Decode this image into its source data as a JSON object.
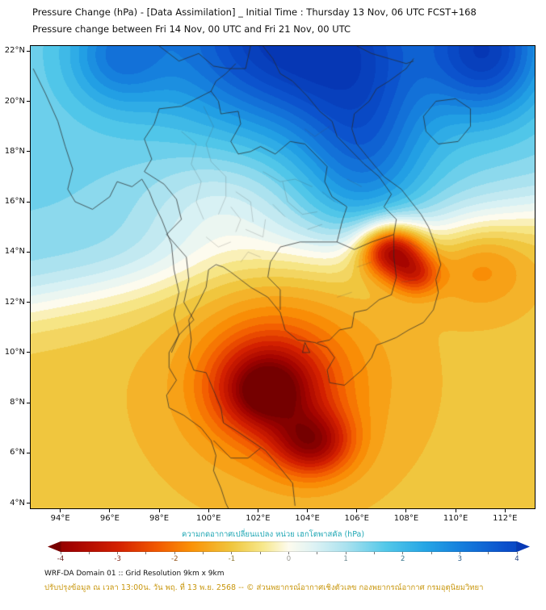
{
  "header": {
    "title_line1": "Pressure Change (hPa) - [Data Assimilation] _ Initial Time : Thursday 13 Nov, 06 UTC FCST+168",
    "title_line2": "Pressure change between Fri 14 Nov, 00 UTC and Fri 21 Nov, 00 UTC"
  },
  "map": {
    "lon_min": 92.8,
    "lon_max": 113.2,
    "lat_min": 3.8,
    "lat_max": 22.2,
    "x_ticks": [
      {
        "value": 94,
        "label": "94°E"
      },
      {
        "value": 96,
        "label": "96°E"
      },
      {
        "value": 98,
        "label": "98°E"
      },
      {
        "value": 100,
        "label": "100°E"
      },
      {
        "value": 102,
        "label": "102°E"
      },
      {
        "value": 104,
        "label": "104°E"
      },
      {
        "value": 106,
        "label": "106°E"
      },
      {
        "value": 108,
        "label": "108°E"
      },
      {
        "value": 110,
        "label": "110°E"
      },
      {
        "value": 112,
        "label": "112°E"
      }
    ],
    "y_ticks": [
      {
        "value": 22,
        "label": "22°N"
      },
      {
        "value": 20,
        "label": "20°N"
      },
      {
        "value": 18,
        "label": "18°N"
      },
      {
        "value": 16,
        "label": "16°N"
      },
      {
        "value": 14,
        "label": "14°N"
      },
      {
        "value": 12,
        "label": "12°N"
      },
      {
        "value": 10,
        "label": "10°N"
      },
      {
        "value": 8,
        "label": "8°N"
      },
      {
        "value": 6,
        "label": "6°N"
      },
      {
        "value": 4,
        "label": "4°N"
      }
    ]
  },
  "field": {
    "units": "hPa",
    "description": "Pressure rise (blue, up to about +4 hPa) across the north (20-22N, 99-112E); pressure fall (yellow/orange/red, down to about -4 hPa) over the south, strongest over the Gulf of Thailand near 102.5E 8.5N and 104E 6.5N, and over southern Vietnam highlands near 107.4E 14N",
    "base": {
      "north": 1.4,
      "south": -1.05,
      "lat0_at_lon94": 12.2,
      "lat0_slope": 0.18,
      "transition_width": 1.6
    },
    "blobs": [
      {
        "name": "north-high-core",
        "lon": 103.5,
        "lat": 22.5,
        "sx": 3.8,
        "sy": 2.6,
        "amp": 3.2
      },
      {
        "name": "northeast-high",
        "lon": 111.3,
        "lat": 22.0,
        "sx": 1.6,
        "sy": 1.8,
        "amp": 2.6
      },
      {
        "name": "vietnam-coast-ridge",
        "lon": 106.3,
        "lat": 18.0,
        "sx": 1.8,
        "sy": 2.6,
        "amp": 1.6
      },
      {
        "name": "northwest-high",
        "lon": 96.3,
        "lat": 21.8,
        "sx": 1.4,
        "sy": 1.4,
        "amp": 1.4
      },
      {
        "name": "central-thailand-dip",
        "lon": 100.5,
        "lat": 15.5,
        "sx": 2.2,
        "sy": 1.8,
        "amp": -0.9
      },
      {
        "name": "gulf-low-main",
        "lon": 102.4,
        "lat": 8.6,
        "sx": 1.5,
        "sy": 1.3,
        "amp": -2.6
      },
      {
        "name": "gulf-low-inner-core",
        "lon": 102.3,
        "lat": 8.4,
        "sx": 0.7,
        "sy": 0.6,
        "amp": -0.9
      },
      {
        "name": "gulf-low-south",
        "lon": 104.2,
        "lat": 6.4,
        "sx": 1.1,
        "sy": 0.9,
        "amp": -2.4
      },
      {
        "name": "gulf-orange-halo",
        "lon": 103.0,
        "lat": 9.0,
        "sx": 2.8,
        "sy": 2.6,
        "amp": -1.1
      },
      {
        "name": "vietnam-highland-low",
        "lon": 107.4,
        "lat": 14.1,
        "sx": 0.9,
        "sy": 0.75,
        "amp": -3.6
      },
      {
        "name": "vietnam-coast-low",
        "lon": 108.4,
        "lat": 13.1,
        "sx": 0.7,
        "sy": 0.6,
        "amp": -1.6
      },
      {
        "name": "east-sea-orange",
        "lon": 111.0,
        "lat": 13.5,
        "sx": 1.4,
        "sy": 1.2,
        "amp": -0.8
      }
    ]
  },
  "colormap": {
    "stops": [
      [
        -4.6,
        "#6e0000"
      ],
      [
        -3.8,
        "#a30300"
      ],
      [
        -3.0,
        "#d32000"
      ],
      [
        -2.3,
        "#f25a00"
      ],
      [
        -1.7,
        "#fa9207"
      ],
      [
        -1.0,
        "#f0c63e"
      ],
      [
        -0.45,
        "#f7e88c"
      ],
      [
        0.0,
        "#fdfbee"
      ],
      [
        0.45,
        "#ddf2f4"
      ],
      [
        1.0,
        "#abe2ef"
      ],
      [
        1.7,
        "#53c8e9"
      ],
      [
        2.4,
        "#25a5e5"
      ],
      [
        3.0,
        "#1680dd"
      ],
      [
        3.8,
        "#0b50cc"
      ],
      [
        4.6,
        "#0534b0"
      ]
    ]
  },
  "colorbar": {
    "label": "ความกดอากาศเปลี่ยนแปลง หน่วย เฮกโตพาสคัล (hPa)",
    "label_color": "#1fa7b4",
    "range": [
      -4,
      4
    ],
    "ticks": [
      -4,
      -3,
      -2,
      -1,
      0,
      1,
      2,
      3,
      4
    ],
    "minor_step": 0.5
  },
  "footer": {
    "line1": "WRF-DA Domain 01 :: Grid Resolution 9km x 9km",
    "line2": "ปรับปรุงข้อมูล ณ เวลา 13:00น. วัน พฤ. ที่ 13 พ.ย. 2568 -- © ส่วนพยากรณ์อากาศเชิงตัวเลข กองพยากรณ์อากาศ กรมอุตุนิยมวิทยา",
    "line2_color": "#c8960c"
  },
  "geo": {
    "country_lines": [
      [
        [
          92.9,
          21.3
        ],
        [
          93.4,
          20.3
        ],
        [
          93.9,
          19.2
        ],
        [
          94.2,
          18.2
        ],
        [
          94.5,
          17.3
        ],
        [
          94.3,
          16.5
        ],
        [
          94.6,
          16.0
        ],
        [
          95.3,
          15.7
        ],
        [
          96.0,
          16.2
        ],
        [
          96.3,
          16.8
        ],
        [
          96.9,
          16.6
        ],
        [
          97.3,
          16.9
        ],
        [
          97.6,
          16.4
        ],
        [
          97.8,
          15.9
        ],
        [
          98.1,
          15.3
        ],
        [
          98.5,
          14.3
        ],
        [
          98.6,
          13.3
        ],
        [
          98.8,
          12.4
        ],
        [
          98.6,
          11.5
        ],
        [
          98.8,
          10.7
        ],
        [
          98.4,
          10.0
        ],
        [
          98.4,
          9.4
        ],
        [
          98.7,
          8.9
        ],
        [
          98.3,
          8.3
        ],
        [
          98.4,
          7.8
        ],
        [
          99.0,
          7.5
        ],
        [
          99.7,
          7.0
        ],
        [
          100.1,
          6.5
        ],
        [
          100.3,
          5.9
        ],
        [
          100.2,
          5.3
        ],
        [
          100.5,
          4.6
        ],
        [
          100.7,
          4.0
        ],
        [
          100.8,
          3.8
        ]
      ],
      [
        [
          103.5,
          3.9
        ],
        [
          103.4,
          4.8
        ],
        [
          102.9,
          5.4
        ],
        [
          102.3,
          6.1
        ],
        [
          101.7,
          6.5
        ],
        [
          101.1,
          6.9
        ],
        [
          100.6,
          7.2
        ],
        [
          100.5,
          7.8
        ],
        [
          100.2,
          8.5
        ],
        [
          99.9,
          9.2
        ],
        [
          99.4,
          9.3
        ],
        [
          99.2,
          9.8
        ],
        [
          99.3,
          10.5
        ],
        [
          99.2,
          11.3
        ],
        [
          99.6,
          12.0
        ],
        [
          99.9,
          12.6
        ],
        [
          100.0,
          13.3
        ],
        [
          100.3,
          13.5
        ],
        [
          100.6,
          13.4
        ],
        [
          100.9,
          13.2
        ],
        [
          101.3,
          12.9
        ],
        [
          101.7,
          12.6
        ],
        [
          102.4,
          12.2
        ],
        [
          102.9,
          11.6
        ],
        [
          103.1,
          10.9
        ],
        [
          103.6,
          10.5
        ],
        [
          104.3,
          10.4
        ],
        [
          104.8,
          10.2
        ],
        [
          105.1,
          9.8
        ],
        [
          104.8,
          9.3
        ],
        [
          104.9,
          8.8
        ],
        [
          105.5,
          8.7
        ],
        [
          106.2,
          9.3
        ],
        [
          106.6,
          9.8
        ],
        [
          106.8,
          10.3
        ],
        [
          107.1,
          10.4
        ],
        [
          107.6,
          10.6
        ],
        [
          108.1,
          10.9
        ],
        [
          108.7,
          11.2
        ],
        [
          109.1,
          11.7
        ],
        [
          109.3,
          12.4
        ],
        [
          109.2,
          12.9
        ],
        [
          109.4,
          13.5
        ],
        [
          109.2,
          14.2
        ],
        [
          108.9,
          15.0
        ],
        [
          108.6,
          15.5
        ],
        [
          108.2,
          16.0
        ],
        [
          107.8,
          16.5
        ],
        [
          107.1,
          17.0
        ],
        [
          106.5,
          17.7
        ],
        [
          106.0,
          18.3
        ],
        [
          105.8,
          18.9
        ],
        [
          105.9,
          19.5
        ],
        [
          106.5,
          20.0
        ],
        [
          106.8,
          20.5
        ],
        [
          107.3,
          20.8
        ],
        [
          108.0,
          21.3
        ],
        [
          108.3,
          21.7
        ]
      ],
      [
        [
          108.7,
          19.4
        ],
        [
          109.2,
          20.0
        ],
        [
          110.0,
          20.1
        ],
        [
          110.6,
          19.7
        ],
        [
          110.6,
          19.0
        ],
        [
          110.1,
          18.4
        ],
        [
          109.3,
          18.3
        ],
        [
          108.8,
          18.8
        ],
        [
          108.7,
          19.4
        ]
      ],
      [
        [
          100.1,
          20.4
        ],
        [
          99.5,
          20.1
        ],
        [
          98.9,
          19.8
        ],
        [
          98.0,
          19.7
        ],
        [
          97.8,
          19.1
        ],
        [
          97.4,
          18.5
        ],
        [
          97.7,
          17.7
        ],
        [
          97.4,
          17.2
        ],
        [
          98.2,
          16.7
        ],
        [
          98.7,
          16.1
        ],
        [
          98.9,
          15.3
        ],
        [
          98.3,
          14.7
        ],
        [
          99.1,
          13.8
        ],
        [
          99.2,
          12.9
        ],
        [
          99.0,
          12.0
        ],
        [
          99.4,
          11.3
        ],
        [
          98.8,
          10.7
        ],
        [
          98.5,
          10.0
        ]
      ],
      [
        [
          100.1,
          20.4
        ],
        [
          100.4,
          20.0
        ],
        [
          100.5,
          19.5
        ],
        [
          101.2,
          19.6
        ],
        [
          101.3,
          19.1
        ],
        [
          100.9,
          18.4
        ],
        [
          101.2,
          17.9
        ],
        [
          101.7,
          18.0
        ],
        [
          102.1,
          18.2
        ],
        [
          102.7,
          17.9
        ],
        [
          103.3,
          18.4
        ],
        [
          103.9,
          18.3
        ],
        [
          104.5,
          17.7
        ],
        [
          104.8,
          17.4
        ],
        [
          104.7,
          16.8
        ],
        [
          105.0,
          16.2
        ],
        [
          105.6,
          15.8
        ],
        [
          105.4,
          15.2
        ],
        [
          105.2,
          14.4
        ]
      ],
      [
        [
          105.2,
          14.4
        ],
        [
          104.5,
          14.4
        ],
        [
          103.7,
          14.4
        ],
        [
          102.9,
          14.2
        ],
        [
          102.5,
          13.6
        ],
        [
          102.4,
          13.0
        ],
        [
          102.9,
          12.5
        ],
        [
          102.9,
          11.7
        ]
      ],
      [
        [
          102.2,
          22.2
        ],
        [
          102.6,
          21.7
        ],
        [
          102.9,
          21.1
        ],
        [
          103.4,
          20.8
        ],
        [
          104.0,
          20.2
        ],
        [
          104.5,
          19.6
        ],
        [
          105.0,
          19.2
        ],
        [
          105.2,
          18.6
        ],
        [
          105.7,
          18.1
        ],
        [
          106.3,
          17.5
        ],
        [
          106.9,
          17.0
        ],
        [
          107.4,
          16.3
        ],
        [
          107.1,
          15.8
        ],
        [
          107.6,
          15.3
        ],
        [
          107.5,
          14.7
        ]
      ],
      [
        [
          107.5,
          14.7
        ],
        [
          107.5,
          13.8
        ],
        [
          107.6,
          13.0
        ],
        [
          107.4,
          12.3
        ],
        [
          106.9,
          12.1
        ],
        [
          106.4,
          11.7
        ],
        [
          105.9,
          11.6
        ],
        [
          105.8,
          11.0
        ],
        [
          105.3,
          10.9
        ],
        [
          104.9,
          10.5
        ],
        [
          104.4,
          10.4
        ]
      ],
      [
        [
          105.2,
          14.4
        ],
        [
          105.9,
          14.1
        ],
        [
          106.6,
          14.4
        ],
        [
          107.5,
          14.7
        ]
      ],
      [
        [
          98.0,
          22.2
        ],
        [
          98.8,
          21.6
        ],
        [
          99.6,
          21.9
        ],
        [
          100.2,
          21.4
        ],
        [
          100.8,
          21.3
        ],
        [
          101.5,
          21.3
        ],
        [
          101.7,
          22.2
        ]
      ],
      [
        [
          106.0,
          22.2
        ],
        [
          106.6,
          21.9
        ],
        [
          107.3,
          21.7
        ],
        [
          108.0,
          21.5
        ],
        [
          108.3,
          21.6
        ]
      ],
      [
        [
          100.1,
          20.4
        ],
        [
          100.3,
          20.8
        ],
        [
          100.7,
          21.1
        ],
        [
          101.1,
          21.5
        ]
      ],
      [
        [
          100.2,
          6.5
        ],
        [
          100.9,
          5.8
        ],
        [
          101.6,
          5.8
        ],
        [
          102.1,
          6.2
        ]
      ],
      [
        [
          103.9,
          10.4
        ],
        [
          104.1,
          10.0
        ],
        [
          103.8,
          10.0
        ],
        [
          103.9,
          10.4
        ]
      ]
    ],
    "admin_lines": [
      [
        [
          99.8,
          19.8
        ],
        [
          100.2,
          19.0
        ],
        [
          99.9,
          18.3
        ],
        [
          100.1,
          17.6
        ]
      ],
      [
        [
          98.9,
          18.8
        ],
        [
          99.5,
          18.3
        ],
        [
          99.3,
          17.5
        ]
      ],
      [
        [
          100.1,
          17.6
        ],
        [
          100.7,
          17.0
        ],
        [
          100.7,
          16.2
        ],
        [
          100.4,
          15.5
        ]
      ],
      [
        [
          99.3,
          17.5
        ],
        [
          99.7,
          16.8
        ],
        [
          99.5,
          16.0
        ],
        [
          99.8,
          15.3
        ]
      ],
      [
        [
          101.1,
          16.4
        ],
        [
          101.7,
          16.0
        ],
        [
          101.8,
          15.2
        ]
      ],
      [
        [
          102.2,
          17.2
        ],
        [
          102.9,
          16.8
        ],
        [
          103.5,
          16.9
        ],
        [
          104.2,
          16.6
        ]
      ],
      [
        [
          103.0,
          16.8
        ],
        [
          103.2,
          16.0
        ],
        [
          103.8,
          15.5
        ],
        [
          104.4,
          15.6
        ]
      ],
      [
        [
          101.5,
          14.9
        ],
        [
          102.2,
          14.6
        ],
        [
          102.3,
          15.3
        ]
      ],
      [
        [
          99.9,
          14.6
        ],
        [
          100.4,
          14.2
        ],
        [
          100.9,
          14.4
        ]
      ],
      [
        [
          101.3,
          13.6
        ],
        [
          101.6,
          14.0
        ],
        [
          102.1,
          13.8
        ]
      ],
      [
        [
          104.9,
          19.0
        ],
        [
          104.3,
          18.6
        ],
        [
          103.9,
          18.9
        ]
      ],
      [
        [
          105.6,
          16.9
        ],
        [
          106.2,
          16.6
        ]
      ],
      [
        [
          104.0,
          14.9
        ],
        [
          104.6,
          15.1
        ]
      ],
      [
        [
          106.0,
          13.4
        ],
        [
          106.6,
          13.6
        ]
      ],
      [
        [
          105.2,
          12.2
        ],
        [
          105.8,
          12.4
        ]
      ],
      [
        [
          108.1,
          14.4
        ],
        [
          108.6,
          14.1
        ]
      ],
      [
        [
          107.8,
          12.8
        ],
        [
          108.4,
          12.9
        ]
      ],
      [
        [
          100.9,
          15.8
        ],
        [
          101.3,
          15.3
        ],
        [
          101.1,
          14.8
        ]
      ],
      [
        [
          102.6,
          15.9
        ],
        [
          103.1,
          15.4
        ]
      ],
      [
        [
          104.6,
          16.4
        ],
        [
          105.1,
          16.0
        ]
      ]
    ]
  }
}
